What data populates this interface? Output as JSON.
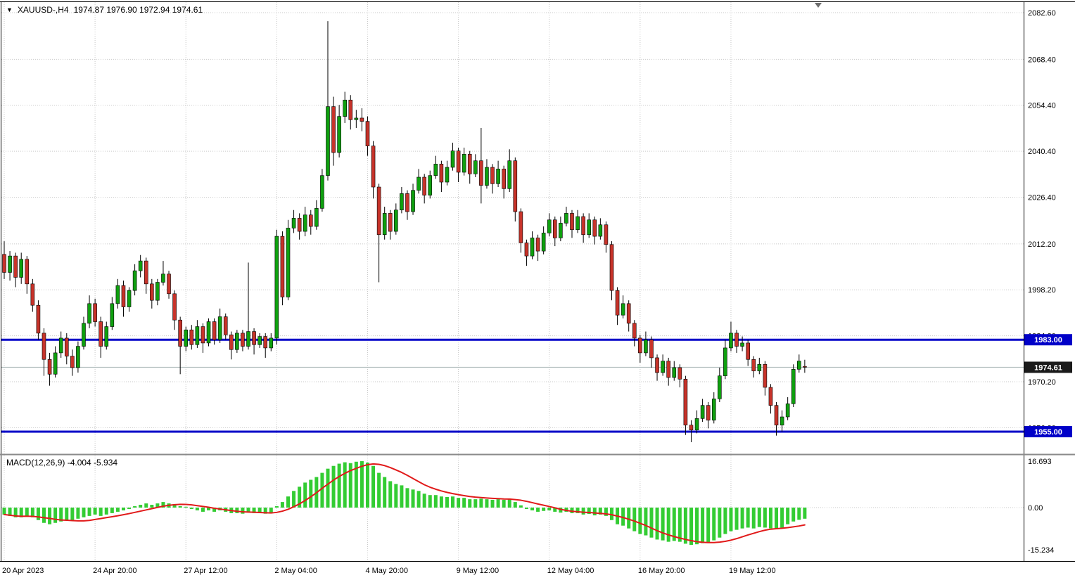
{
  "header": {
    "dropdown_icon": "▼",
    "symbol": "XAUUSD-,H4",
    "ohlc": "1974.87 1976.90 1972.94 1974.61"
  },
  "macd": {
    "label": "MACD(12,26,9) -4.004 -5.934"
  },
  "price_axis": {
    "labels": [
      "2082.60",
      "2068.40",
      "2054.40",
      "2040.40",
      "2026.40",
      "2012.20",
      "1998.20",
      "1984.20",
      "1970.20",
      "1956.20"
    ]
  },
  "macd_axis": {
    "labels": [
      "16.693",
      "0.00",
      "-15.234"
    ]
  },
  "time_axis": {
    "labels": [
      {
        "text": "20 Apr 2023",
        "index": 0
      },
      {
        "text": "24 Apr 20:00",
        "index": 16
      },
      {
        "text": "27 Apr 12:00",
        "index": 32
      },
      {
        "text": "2 May 04:00",
        "index": 48
      },
      {
        "text": "4 May 20:00",
        "index": 64
      },
      {
        "text": "9 May 12:00",
        "index": 80
      },
      {
        "text": "12 May 04:00",
        "index": 96
      },
      {
        "text": "16 May 20:00",
        "index": 112
      },
      {
        "text": "19 May 12:00",
        "index": 128
      }
    ]
  },
  "levels": [
    {
      "label": "1983.00",
      "price": 1983.0
    },
    {
      "label": "1955.00",
      "price": 1955.0
    }
  ],
  "current_price": {
    "label": "1974.61",
    "price": 1974.61
  },
  "colors": {
    "bull": "#0fa00f",
    "bear": "#c7332a",
    "wick": "#000000",
    "macd_bar": "#33cc33",
    "macd_signal": "#e11a1a",
    "level_line": "#0000c8",
    "grid": "#c9c9c9",
    "current_price_line": "#a8b6b6",
    "current_label_bg": "#1a1a1a",
    "axis_text": "#000000"
  },
  "chart_data": {
    "type": "candlestick",
    "symbol": "XAUUSD-",
    "timeframe": "H4",
    "y_axis_range": [
      1948.0,
      2086.5
    ],
    "macd_range": [
      -15.234,
      16.693
    ],
    "ohlc_current": {
      "open": 1974.87,
      "high": 1976.9,
      "low": 1972.94,
      "close": 1974.61
    },
    "support_resistance": [
      1983.0,
      1955.0
    ],
    "candles": [
      [
        2009,
        2013,
        2001.5,
        2003.5
      ],
      [
        2003.5,
        2010,
        2001,
        2008.5
      ],
      [
        2008.5,
        2009.5,
        1999,
        2002
      ],
      [
        2002,
        2009.5,
        2000,
        2007.5
      ],
      [
        2007.5,
        2008.5,
        1997,
        2000
      ],
      [
        2000,
        2001.5,
        1991.5,
        1993.5
      ],
      [
        1993.5,
        1995,
        1983,
        1985
      ],
      [
        1985,
        1986.5,
        1972,
        1977
      ],
      [
        1977,
        1979,
        1969,
        1972.5
      ],
      [
        1972.5,
        1981,
        1971.5,
        1979
      ],
      [
        1979,
        1985.5,
        1977.5,
        1983.5
      ],
      [
        1983.5,
        1985,
        1975.5,
        1978
      ],
      [
        1978,
        1980,
        1972,
        1974.5
      ],
      [
        1974.5,
        1982.5,
        1973,
        1981
      ],
      [
        1981,
        1990,
        1980,
        1988
      ],
      [
        1988,
        1996.5,
        1986.5,
        1994
      ],
      [
        1994,
        1995.5,
        1987,
        1988.5
      ],
      [
        1988.5,
        1990,
        1977.5,
        1981
      ],
      [
        1981,
        1988.5,
        1980,
        1987
      ],
      [
        1987,
        1996,
        1986,
        1994
      ],
      [
        1994,
        2001.5,
        1992.5,
        1999.5
      ],
      [
        1999.5,
        2001,
        1990,
        1993
      ],
      [
        1993,
        1999,
        1991.5,
        1998
      ],
      [
        1998,
        2006,
        1996.5,
        2004
      ],
      [
        2004,
        2008.8,
        2002,
        2007
      ],
      [
        2007,
        2008,
        1997,
        2000
      ],
      [
        2000,
        2001.5,
        1992.5,
        1995
      ],
      [
        1995,
        2001.5,
        1993.5,
        2000.5
      ],
      [
        2000.5,
        2007,
        1999.5,
        2003
      ],
      [
        2003,
        2004,
        1995.5,
        1997
      ],
      [
        1997,
        1998,
        1986,
        1989
      ],
      [
        1989,
        1990,
        1972.5,
        1981
      ],
      [
        1981,
        1987,
        1979.5,
        1986
      ],
      [
        1986,
        1987.5,
        1980,
        1981.5
      ],
      [
        1981.5,
        1989,
        1980.5,
        1987
      ],
      [
        1987,
        1988,
        1979,
        1982
      ],
      [
        1982,
        1989.5,
        1981,
        1988.5
      ],
      [
        1988.5,
        1989.5,
        1981.5,
        1983
      ],
      [
        1983,
        1992.5,
        1982,
        1990
      ],
      [
        1990,
        1991,
        1983,
        1984.5
      ],
      [
        1984.5,
        1985.5,
        1977,
        1980
      ],
      [
        1980,
        1986,
        1979,
        1985
      ],
      [
        1985,
        1986,
        1979.5,
        1981
      ],
      [
        1981,
        2006.5,
        1980,
        1985.5
      ],
      [
        1985.5,
        1986.5,
        1978.5,
        1981.5
      ],
      [
        1981.5,
        1985,
        1980.5,
        1984
      ],
      [
        1984,
        1985,
        1977.5,
        1980.5
      ],
      [
        1980.5,
        1985,
        1979.5,
        1983.5
      ],
      [
        1983.5,
        2016.5,
        1981.5,
        2014.5
      ],
      [
        2014.5,
        2016,
        1993.5,
        1996
      ],
      [
        1996,
        2019.5,
        1995,
        2017
      ],
      [
        2017,
        2022.5,
        2015.5,
        2020
      ],
      [
        2020,
        2021.5,
        2013.5,
        2016
      ],
      [
        2016,
        2023.5,
        2014.5,
        2021
      ],
      [
        2021,
        2022.5,
        2015,
        2017.5
      ],
      [
        2017.5,
        2025.5,
        2016.5,
        2023
      ],
      [
        2023,
        2035,
        2022,
        2033
      ],
      [
        2033,
        2080,
        2031.5,
        2054
      ],
      [
        2054,
        2057,
        2036,
        2040
      ],
      [
        2040,
        2054.5,
        2038.5,
        2051
      ],
      [
        2051,
        2058.5,
        2049,
        2056
      ],
      [
        2056,
        2057.5,
        2047,
        2050
      ],
      [
        2050,
        2053,
        2047.5,
        2050.5
      ],
      [
        2050.5,
        2053.5,
        2046.5,
        2049.5
      ],
      [
        2049.5,
        2051,
        2039,
        2042
      ],
      [
        2042,
        2043.5,
        2026,
        2029.5
      ],
      [
        2029.5,
        2030.5,
        2000.5,
        2015
      ],
      [
        2015,
        2023.5,
        2013.5,
        2021.5
      ],
      [
        2021.5,
        2022.5,
        2013.5,
        2016
      ],
      [
        2016,
        2024.5,
        2015,
        2022.5
      ],
      [
        2022.5,
        2029.5,
        2021.5,
        2027.5
      ],
      [
        2027.5,
        2028.5,
        2019.5,
        2022
      ],
      [
        2022,
        2030.5,
        2021,
        2028.5
      ],
      [
        2028.5,
        2035,
        2027.5,
        2032.5
      ],
      [
        2032.5,
        2033.5,
        2024.5,
        2027
      ],
      [
        2027,
        2034.5,
        2026,
        2033
      ],
      [
        2033,
        2039,
        2032,
        2036.5
      ],
      [
        2036.5,
        2037.5,
        2028,
        2031
      ],
      [
        2031,
        2037.5,
        2030,
        2035.5
      ],
      [
        2035.5,
        2043,
        2034.5,
        2040.5
      ],
      [
        2040.5,
        2041.5,
        2031,
        2034
      ],
      [
        2034,
        2041.5,
        2033,
        2039.5
      ],
      [
        2039.5,
        2040.5,
        2030.5,
        2033.5
      ],
      [
        2033.5,
        2039.5,
        2032.5,
        2037.5
      ],
      [
        2037.5,
        2047.5,
        2024.5,
        2030
      ],
      [
        2030,
        2038,
        2029,
        2035.5
      ],
      [
        2035.5,
        2036.5,
        2027.5,
        2030.5
      ],
      [
        2030.5,
        2037.5,
        2029.5,
        2035
      ],
      [
        2035,
        2036,
        2026,
        2029
      ],
      [
        2029,
        2041,
        2028,
        2037.5
      ],
      [
        2037.5,
        2038.5,
        2019,
        2022
      ],
      [
        2022,
        2023,
        2009.5,
        2012.5
      ],
      [
        2012.5,
        2013.5,
        2005.5,
        2008.5
      ],
      [
        2008.5,
        2016,
        2007.5,
        2014
      ],
      [
        2014,
        2015,
        2007,
        2010
      ],
      [
        2010,
        2017.5,
        2009,
        2015.5
      ],
      [
        2015.5,
        2021.5,
        2014.5,
        2019.5
      ],
      [
        2019.5,
        2020.5,
        2011.5,
        2014
      ],
      [
        2014,
        2020.5,
        2013,
        2018.5
      ],
      [
        2018.5,
        2023.5,
        2017.5,
        2021.5
      ],
      [
        2021.5,
        2022.5,
        2014,
        2016.5
      ],
      [
        2016.5,
        2022.5,
        2015.5,
        2020.5
      ],
      [
        2020.5,
        2021.5,
        2012.5,
        2015
      ],
      [
        2015,
        2021.5,
        2014,
        2019.5
      ],
      [
        2019.5,
        2020.5,
        2012,
        2014.5
      ],
      [
        2014.5,
        2020,
        2013.5,
        2018
      ],
      [
        2018,
        2019,
        2009.5,
        2012
      ],
      [
        2012,
        2013,
        1995,
        1998
      ],
      [
        1998,
        1999,
        1987.5,
        1990.5
      ],
      [
        1990.5,
        1996.5,
        1989.5,
        1994
      ],
      [
        1994,
        1995,
        1985.5,
        1988
      ],
      [
        1988,
        1989,
        1981,
        1983.5
      ],
      [
        1983.5,
        1984.5,
        1976,
        1979
      ],
      [
        1979,
        1985.5,
        1978,
        1983
      ],
      [
        1983,
        1984,
        1974.5,
        1977.5
      ],
      [
        1977.5,
        1978.5,
        1970.5,
        1973
      ],
      [
        1973,
        1978.5,
        1972,
        1976.5
      ],
      [
        1976.5,
        1977.5,
        1969,
        1971.5
      ],
      [
        1971.5,
        1976.5,
        1970.5,
        1974.5
      ],
      [
        1974.5,
        1975.5,
        1968.5,
        1971
      ],
      [
        1971,
        1972,
        1954,
        1957
      ],
      [
        1957,
        1958.5,
        1951.8,
        1955.5
      ],
      [
        1955.5,
        1961.5,
        1954.5,
        1959
      ],
      [
        1959,
        1965,
        1958,
        1963
      ],
      [
        1963,
        1964,
        1956,
        1958.5
      ],
      [
        1958.5,
        1967,
        1957.5,
        1965
      ],
      [
        1965,
        1974.5,
        1964,
        1972
      ],
      [
        1972,
        1983,
        1971,
        1980.5
      ],
      [
        1980.5,
        1988.5,
        1979.5,
        1985
      ],
      [
        1985,
        1986,
        1979,
        1981
      ],
      [
        1981,
        1984,
        1979.5,
        1982
      ],
      [
        1982,
        1983,
        1975,
        1977
      ],
      [
        1977,
        1978,
        1971.5,
        1973.5
      ],
      [
        1973.5,
        1977.5,
        1972.5,
        1975.5
      ],
      [
        1975.5,
        1976.5,
        1966,
        1968.5
      ],
      [
        1968.5,
        1969.5,
        1960.5,
        1963
      ],
      [
        1963,
        1964,
        1953.8,
        1957
      ],
      [
        1957,
        1961.5,
        1955,
        1959.5
      ],
      [
        1959.5,
        1965.5,
        1958.5,
        1963.5
      ],
      [
        1963.5,
        1975.5,
        1962.5,
        1974
      ],
      [
        1974,
        1978.5,
        1973,
        1976.5
      ],
      [
        1974.87,
        1976.9,
        1972.94,
        1974.61
      ]
    ],
    "indicator": {
      "name": "MACD",
      "params": [
        12,
        26,
        9
      ],
      "macd_value": -4.004,
      "signal_value": -5.934,
      "histogram": [
        -2.5,
        -3,
        -3.5,
        -3.5,
        -3,
        -3.5,
        -4.5,
        -5.5,
        -6,
        -5.5,
        -5,
        -4.5,
        -4.5,
        -4,
        -3.5,
        -3,
        -2.5,
        -3,
        -2.5,
        -2,
        -1.5,
        -1,
        -0.5,
        0.5,
        1,
        1.5,
        1,
        1.5,
        2,
        1.5,
        1,
        0.5,
        0.3,
        -0.5,
        -1,
        -1.5,
        -1,
        -1.5,
        -1,
        -1.5,
        -2,
        -2,
        -2.2,
        -1.8,
        -2,
        -2,
        -2.2,
        -1.8,
        0.5,
        2,
        4,
        6,
        7.5,
        9,
        10,
        11,
        12.5,
        14,
        15,
        15.8,
        16.3,
        16,
        16.5,
        16.7,
        16.2,
        15,
        12.5,
        11,
        9.5,
        8.5,
        8,
        7,
        6.5,
        6,
        5,
        4.5,
        4.5,
        4,
        3.8,
        4,
        3.5,
        3.5,
        3,
        3,
        3.2,
        3,
        2.8,
        3,
        2.8,
        3.2,
        2,
        0.8,
        -0.5,
        -1,
        -1.5,
        -1.2,
        -1,
        -1.5,
        -1.8,
        -1.5,
        -2,
        -2,
        -2.5,
        -2.3,
        -2.8,
        -2.5,
        -3,
        -4.5,
        -6,
        -6.5,
        -7.5,
        -8.5,
        -9.5,
        -10,
        -10.8,
        -11.5,
        -11.8,
        -12.3,
        -12,
        -12.3,
        -13,
        -13.4,
        -13.2,
        -12.8,
        -12.5,
        -11.8,
        -10.8,
        -9.5,
        -8.5,
        -8,
        -7.5,
        -7.2,
        -7.5,
        -7,
        -7.2,
        -7.5,
        -7.8,
        -7.2,
        -6,
        -5,
        -4.4,
        -4.004
      ]
    }
  }
}
